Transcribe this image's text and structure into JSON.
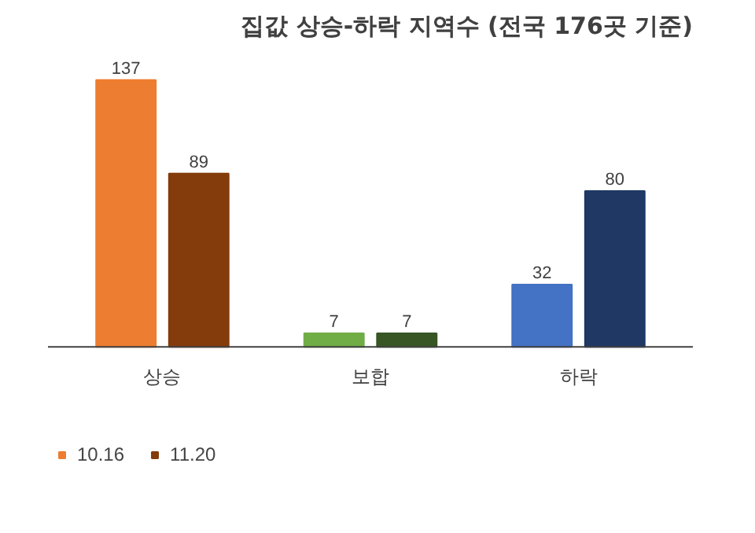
{
  "chart_data": {
    "type": "bar",
    "title": "집값 상승-하락 지역수 (전국 176곳 기준)",
    "categories": [
      "상승",
      "보합",
      "하락"
    ],
    "series": [
      {
        "name": "10.16",
        "color": "#ed7d31",
        "colors": [
          "#ed7d31",
          "#70ad47",
          "#4472c4"
        ],
        "values": [
          137,
          7,
          32
        ]
      },
      {
        "name": "11.20",
        "color": "#843c0c",
        "colors": [
          "#843c0c",
          "#375623",
          "#1f3864"
        ],
        "values": [
          89,
          7,
          80
        ]
      }
    ],
    "data_labels": true,
    "legend": "bottom left"
  }
}
